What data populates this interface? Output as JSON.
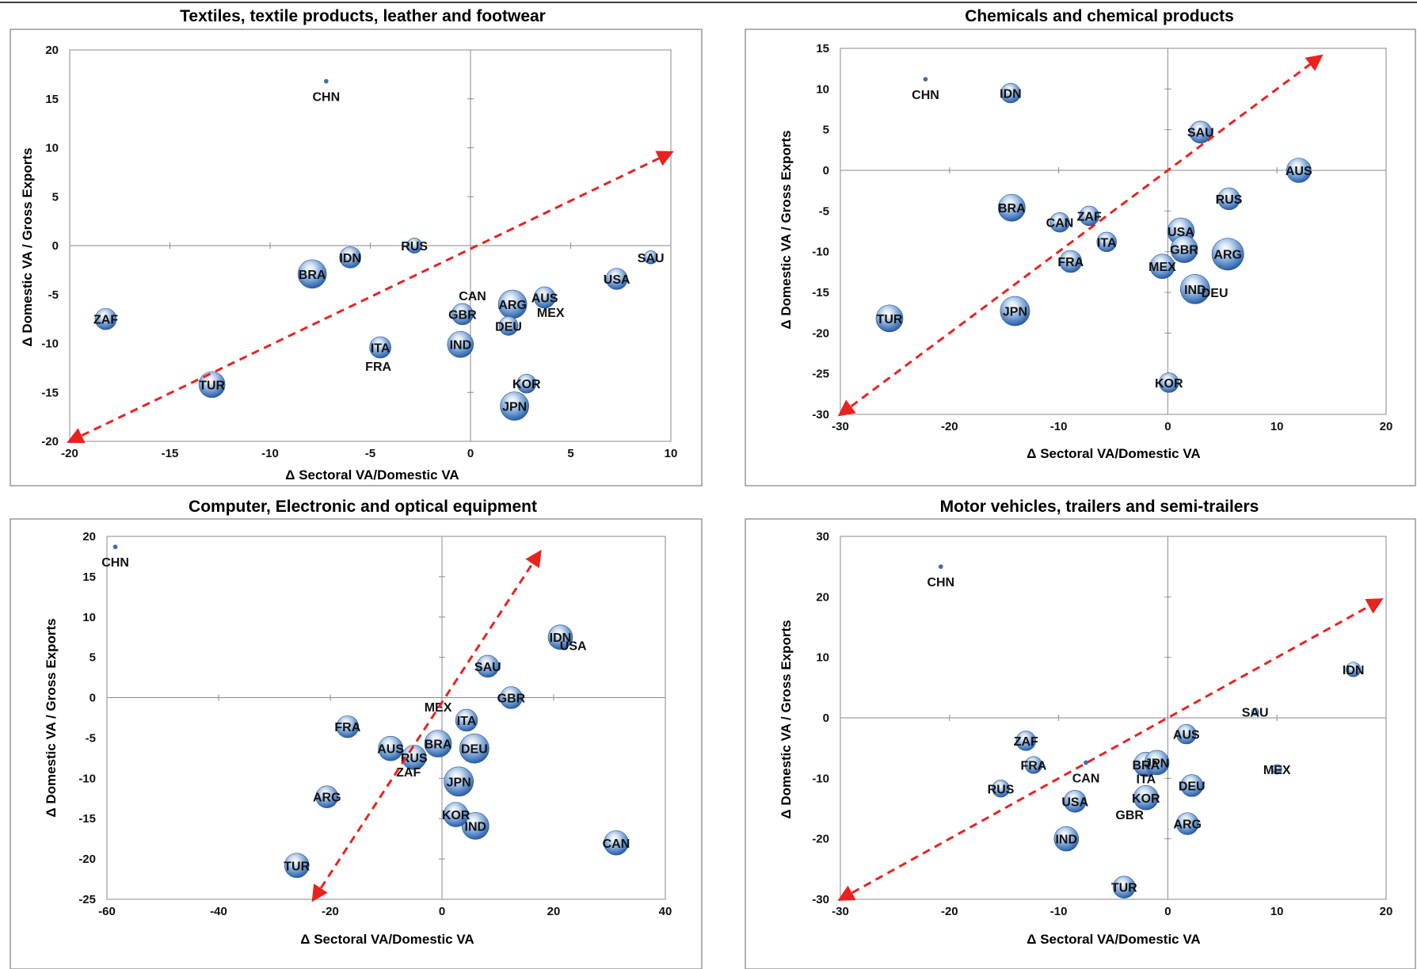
{
  "chart_data": [
    {
      "type": "bubble",
      "title": "Textiles, textile products, leather and footwear",
      "xlabel": "Δ Sectoral VA/Domestic VA",
      "ylabel": "Δ Domestic VA / Gross Exports",
      "xlim": [
        -20,
        10
      ],
      "ylim": [
        -20,
        20
      ],
      "xticks": [
        -20,
        -15,
        -10,
        -5,
        0,
        5,
        10
      ],
      "yticks": [
        -20,
        -15,
        -10,
        -5,
        0,
        5,
        10,
        15,
        20
      ],
      "arrow": {
        "from": [
          -20,
          -20
        ],
        "to": [
          10,
          9.5
        ],
        "color": "#e8231f"
      },
      "points": [
        {
          "label": "CHN",
          "x": -7.2,
          "y": 16.8,
          "size": 0.05
        },
        {
          "label": "ZAF",
          "x": -18.2,
          "y": -7.5,
          "size": 0.45
        },
        {
          "label": "TUR",
          "x": -12.9,
          "y": -14.2,
          "size": 0.55
        },
        {
          "label": "BRA",
          "x": -7.9,
          "y": -2.9,
          "size": 0.6
        },
        {
          "label": "IDN",
          "x": -6.0,
          "y": -1.2,
          "size": 0.45
        },
        {
          "label": "RUS",
          "x": -2.8,
          "y": 0.0,
          "size": 0.32
        },
        {
          "label": "ITA",
          "x": -4.5,
          "y": -10.4,
          "size": 0.45
        },
        {
          "label": "FRA",
          "x": -4.6,
          "y": -12.3,
          "size": 0.0
        },
        {
          "label": "IND",
          "x": -0.5,
          "y": -10.1,
          "size": 0.55
        },
        {
          "label": "CAN",
          "x": 0.1,
          "y": -5.1,
          "size": 0.0
        },
        {
          "label": "GBR",
          "x": -0.4,
          "y": -7.0,
          "size": 0.45
        },
        {
          "label": "ARG",
          "x": 2.1,
          "y": -6.0,
          "size": 0.6
        },
        {
          "label": "AUS",
          "x": 3.7,
          "y": -5.3,
          "size": 0.45
        },
        {
          "label": "MEX",
          "x": 4.0,
          "y": -6.8,
          "size": 0.0
        },
        {
          "label": "DEU",
          "x": 1.9,
          "y": -8.2,
          "size": 0.4
        },
        {
          "label": "KOR",
          "x": 2.8,
          "y": -14.1,
          "size": 0.4
        },
        {
          "label": "JPN",
          "x": 2.2,
          "y": -16.4,
          "size": 0.6
        },
        {
          "label": "USA",
          "x": 7.3,
          "y": -3.4,
          "size": 0.45
        },
        {
          "label": "SAU",
          "x": 9.0,
          "y": -1.2,
          "size": 0.28
        }
      ]
    },
    {
      "type": "bubble",
      "title": "Chemicals and chemical products",
      "xlabel": "Δ Sectoral VA/Domestic VA",
      "ylabel": "Δ Domestic VA / Gross Exports",
      "xlim": [
        -30,
        20
      ],
      "ylim": [
        -30,
        15
      ],
      "xticks": [
        -30,
        -20,
        -10,
        0,
        10,
        20
      ],
      "yticks": [
        -30,
        -25,
        -20,
        -15,
        -10,
        -5,
        0,
        5,
        10,
        15
      ],
      "arrow": {
        "from": [
          -30,
          -30
        ],
        "to": [
          14,
          14
        ],
        "color": "#e8231f"
      },
      "points": [
        {
          "label": "CHN",
          "x": -22.2,
          "y": 11.2,
          "size": 0.05
        },
        {
          "label": "IDN",
          "x": -14.4,
          "y": 9.5,
          "size": 0.4
        },
        {
          "label": "SAU",
          "x": 3.0,
          "y": 4.7,
          "size": 0.45
        },
        {
          "label": "AUS",
          "x": 12.0,
          "y": 0.0,
          "size": 0.5
        },
        {
          "label": "RUS",
          "x": 5.6,
          "y": -3.5,
          "size": 0.45
        },
        {
          "label": "BRA",
          "x": -14.3,
          "y": -4.6,
          "size": 0.55
        },
        {
          "label": "ZAF",
          "x": -7.2,
          "y": -5.6,
          "size": 0.4
        },
        {
          "label": "CAN",
          "x": -9.9,
          "y": -6.4,
          "size": 0.4
        },
        {
          "label": "ITA",
          "x": -5.6,
          "y": -8.8,
          "size": 0.4
        },
        {
          "label": "USA",
          "x": 1.2,
          "y": -7.5,
          "size": 0.55
        },
        {
          "label": "FRA",
          "x": -8.9,
          "y": -11.2,
          "size": 0.45
        },
        {
          "label": "GBR",
          "x": 1.5,
          "y": -9.7,
          "size": 0.55
        },
        {
          "label": "ARG",
          "x": 5.5,
          "y": -10.3,
          "size": 0.65
        },
        {
          "label": "MEX",
          "x": -0.5,
          "y": -11.8,
          "size": 0.5
        },
        {
          "label": "IND",
          "x": 2.5,
          "y": -14.6,
          "size": 0.6
        },
        {
          "label": "DEU",
          "x": 4.3,
          "y": -15.0,
          "size": 0.0
        },
        {
          "label": "JPN",
          "x": -14.0,
          "y": -17.3,
          "size": 0.6
        },
        {
          "label": "TUR",
          "x": -25.5,
          "y": -18.2,
          "size": 0.55
        },
        {
          "label": "KOR",
          "x": 0.1,
          "y": -26.1,
          "size": 0.4
        }
      ]
    },
    {
      "type": "bubble",
      "title": "Computer, Electronic and optical equipment",
      "xlabel": "Δ Sectoral VA/Domestic VA",
      "ylabel": "Δ Domestic VA / Gross Exports",
      "xlim": [
        -60,
        40
      ],
      "ylim": [
        -25,
        20
      ],
      "xticks": [
        -60,
        -40,
        -20,
        0,
        20,
        40
      ],
      "yticks": [
        -25,
        -20,
        -15,
        -10,
        -5,
        0,
        5,
        10,
        15,
        20
      ],
      "arrow": {
        "from": [
          -23,
          -25
        ],
        "to": [
          17.5,
          18
        ],
        "color": "#e8231f"
      },
      "points": [
        {
          "label": "CHN",
          "x": -58.5,
          "y": 18.7,
          "size": 0.05
        },
        {
          "label": "IDN",
          "x": 21.2,
          "y": 7.5,
          "size": 0.5
        },
        {
          "label": "USA",
          "x": 23.5,
          "y": 6.5,
          "size": 0.0
        },
        {
          "label": "SAU",
          "x": 8.2,
          "y": 3.9,
          "size": 0.45
        },
        {
          "label": "GBR",
          "x": 12.4,
          "y": 0.0,
          "size": 0.45
        },
        {
          "label": "MEX",
          "x": -0.7,
          "y": -1.1,
          "size": 0.0
        },
        {
          "label": "ITA",
          "x": 4.4,
          "y": -2.8,
          "size": 0.45
        },
        {
          "label": "FRA",
          "x": -16.9,
          "y": -3.6,
          "size": 0.45
        },
        {
          "label": "AUS",
          "x": -9.2,
          "y": -6.3,
          "size": 0.5
        },
        {
          "label": "BRA",
          "x": -0.7,
          "y": -5.7,
          "size": 0.55
        },
        {
          "label": "DEU",
          "x": 5.8,
          "y": -6.3,
          "size": 0.6
        },
        {
          "label": "RUS",
          "x": -5.0,
          "y": -7.4,
          "size": 0.5
        },
        {
          "label": "ZAF",
          "x": -6.0,
          "y": -9.2,
          "size": 0.0
        },
        {
          "label": "JPN",
          "x": 3.0,
          "y": -10.4,
          "size": 0.6
        },
        {
          "label": "ARG",
          "x": -20.6,
          "y": -12.3,
          "size": 0.45
        },
        {
          "label": "KOR",
          "x": 2.5,
          "y": -14.5,
          "size": 0.5
        },
        {
          "label": "IND",
          "x": 6.0,
          "y": -15.9,
          "size": 0.55
        },
        {
          "label": "CAN",
          "x": 31.2,
          "y": -18.0,
          "size": 0.5
        },
        {
          "label": "TUR",
          "x": -26.0,
          "y": -20.8,
          "size": 0.5
        }
      ]
    },
    {
      "type": "bubble",
      "title": "Motor vehicles, trailers and semi-trailers",
      "xlabel": "Δ Sectoral VA/Domestic VA",
      "ylabel": "Δ Domestic VA / Gross Exports",
      "xlim": [
        -30,
        20
      ],
      "ylim": [
        -30,
        30
      ],
      "xticks": [
        -30,
        -20,
        -10,
        0,
        10,
        20
      ],
      "yticks": [
        -30,
        -20,
        -10,
        0,
        10,
        20,
        30
      ],
      "arrow": {
        "from": [
          -30,
          -30
        ],
        "to": [
          19.5,
          19.5
        ],
        "color": "#e8231f"
      },
      "points": [
        {
          "label": "CHN",
          "x": -20.8,
          "y": 25.0,
          "size": 0.05
        },
        {
          "label": "IDN",
          "x": 17.0,
          "y": 8.0,
          "size": 0.3
        },
        {
          "label": "SAU",
          "x": 8.0,
          "y": 1.0,
          "size": 0.15
        },
        {
          "label": "AUS",
          "x": 1.7,
          "y": -2.7,
          "size": 0.4
        },
        {
          "label": "ZAF",
          "x": -13.0,
          "y": -3.8,
          "size": 0.4
        },
        {
          "label": "CAN",
          "x": -7.5,
          "y": -7.4,
          "size": 0.08
        },
        {
          "label": "FRA",
          "x": -12.3,
          "y": -7.8,
          "size": 0.35
        },
        {
          "label": "BRA",
          "x": -2.0,
          "y": -7.7,
          "size": 0.5
        },
        {
          "label": "JPN",
          "x": -1.0,
          "y": -7.4,
          "size": 0.5
        },
        {
          "label": "MEX",
          "x": 10.0,
          "y": -8.5,
          "size": 0.2
        },
        {
          "label": "ITA",
          "x": -2.0,
          "y": -10.0,
          "size": 0.0
        },
        {
          "label": "DEU",
          "x": 2.2,
          "y": -11.2,
          "size": 0.45
        },
        {
          "label": "RUS",
          "x": -15.3,
          "y": -11.7,
          "size": 0.35
        },
        {
          "label": "USA",
          "x": -8.5,
          "y": -13.8,
          "size": 0.45
        },
        {
          "label": "KOR",
          "x": -2.0,
          "y": -13.2,
          "size": 0.5
        },
        {
          "label": "GBR",
          "x": -3.5,
          "y": -16.0,
          "size": 0.0
        },
        {
          "label": "ARG",
          "x": 1.8,
          "y": -17.5,
          "size": 0.45
        },
        {
          "label": "IND",
          "x": -9.3,
          "y": -20.0,
          "size": 0.5
        },
        {
          "label": "TUR",
          "x": -4.0,
          "y": -28.0,
          "size": 0.45
        }
      ]
    }
  ]
}
